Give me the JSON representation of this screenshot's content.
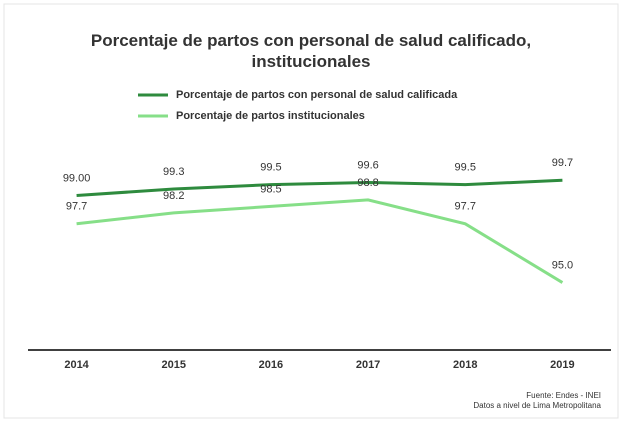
{
  "chart_data": {
    "type": "line",
    "title": "Porcentaje de partos con personal de salud calificado, institucionales",
    "categories": [
      "2014",
      "2015",
      "2016",
      "2017",
      "2018",
      "2019"
    ],
    "series": [
      {
        "name": "Porcentaje de partos con personal de salud calificada",
        "color": "#2e8b3e",
        "values": [
          99.0,
          99.3,
          99.5,
          99.6,
          99.5,
          99.7
        ],
        "value_labels": [
          "99.00",
          "99.3",
          "99.5",
          "99.6",
          "99.5",
          "99.7"
        ]
      },
      {
        "name": "Porcentaje de partos institucionales",
        "color": "#86df88",
        "values": [
          97.7,
          98.2,
          98.5,
          98.8,
          97.7,
          95.0
        ],
        "value_labels": [
          "97.7",
          "98.2",
          "98.5",
          "98.8",
          "97.7",
          "95.0"
        ]
      }
    ],
    "ylim": [
      91.9,
      101
    ],
    "legend": "top",
    "footnotes": [
      "Fuente: Endes - INEI",
      "Datos a nivel de Lima Metropolitana"
    ]
  }
}
